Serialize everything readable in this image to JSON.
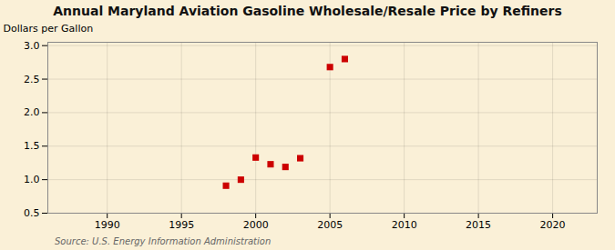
{
  "chart_data": {
    "type": "scatter",
    "title": "Annual Maryland Aviation Gasoline Wholesale/Resale Price by Refiners",
    "ylabel": "Dollars per Gallon",
    "source": "Source: U.S. Energy Information Administration",
    "x": [
      1998,
      1999,
      2000,
      2001,
      2002,
      2003,
      2005,
      2006
    ],
    "values": [
      0.91,
      1.0,
      1.33,
      1.23,
      1.19,
      1.32,
      2.68,
      2.8
    ],
    "color": "#cc0000",
    "marker": "square",
    "xlim": [
      1986,
      2023
    ],
    "ylim": [
      0.5,
      3.05
    ],
    "xticks": [
      1990,
      1995,
      2000,
      2005,
      2010,
      2015,
      2020
    ],
    "yticks": [
      0.5,
      {
        "value": 1.0,
        "label": "1.0"
      },
      1.5,
      {
        "value": 2.0,
        "label": "2.0"
      },
      2.5,
      {
        "value": 3.0,
        "label": "3.0"
      }
    ],
    "grid": true
  }
}
